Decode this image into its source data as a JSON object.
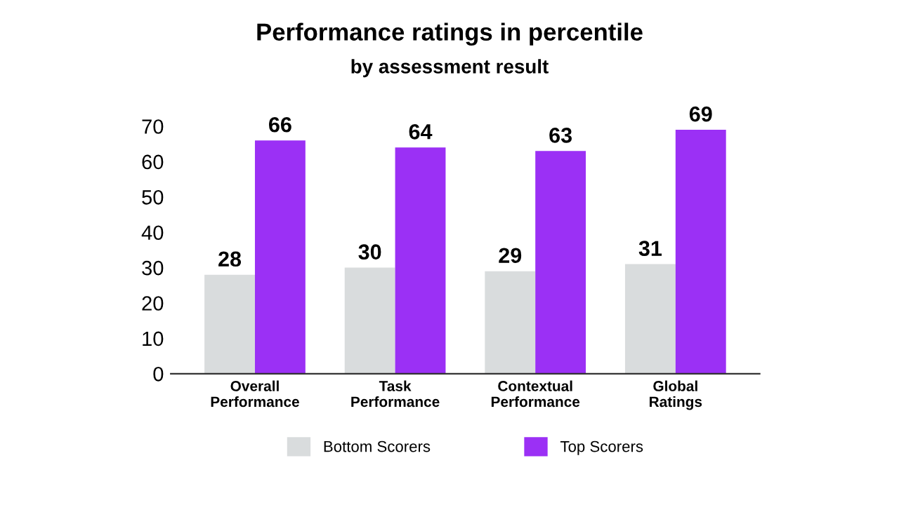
{
  "chart_data": {
    "type": "bar",
    "title": "Performance ratings in percentile",
    "subtitle": "by assessment result",
    "categories": [
      "Overall\nPerformance",
      "Task\nPerformance",
      "Contextual\nPerformance",
      "Global\nRatings"
    ],
    "series": [
      {
        "name": "Bottom Scorers",
        "color": "#d9dcdd",
        "values": [
          28,
          30,
          29,
          31
        ]
      },
      {
        "name": "Top Scorers",
        "color": "#9b30f5",
        "values": [
          66,
          64,
          63,
          69
        ]
      }
    ],
    "ylim": [
      0,
      70
    ],
    "yticks": [
      0,
      10,
      20,
      30,
      40,
      50,
      60,
      70
    ],
    "grid": false,
    "legend": "bottom",
    "data_labels": true
  }
}
